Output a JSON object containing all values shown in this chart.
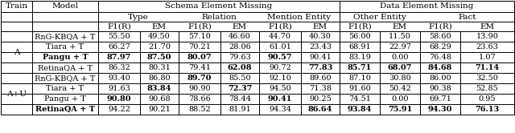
{
  "rows_A": [
    [
      "RnG-KBQA + T",
      "55.50",
      "49.50",
      "57.10",
      "46.60",
      "44.70",
      "40.30",
      "56.00",
      "11.50",
      "58.60",
      "13.90"
    ],
    [
      "Tiara + T",
      "66.27",
      "21.70",
      "70.21",
      "28.06",
      "61.01",
      "23.43",
      "68.91",
      "22.97",
      "68.29",
      "23.63"
    ],
    [
      "Pangu + T",
      "87.97",
      "87.50",
      "80.07",
      "79.63",
      "90.57",
      "90.41",
      "83.19",
      "0.00",
      "76.48",
      "1.07"
    ],
    [
      "RetinaQA + T",
      "86.32",
      "80.31",
      "79.41",
      "62.08",
      "90.72",
      "77.83",
      "85.71",
      "68.07",
      "84.68",
      "71.14"
    ]
  ],
  "rows_AU": [
    [
      "RnG-KBQA + T",
      "93.40",
      "86.80",
      "89.70",
      "85.50",
      "92.10",
      "89.60",
      "87.10",
      "30.80",
      "86.00",
      "32.50"
    ],
    [
      "Tiara + T",
      "91.63",
      "83.84",
      "90.90",
      "72.37",
      "94.50",
      "71.38",
      "91.60",
      "50.42",
      "90.38",
      "52.85"
    ],
    [
      "Pangu + T",
      "90.80",
      "90.68",
      "78.66",
      "78.44",
      "90.41",
      "90.25",
      "74.51",
      "0.00",
      "69.71",
      "0.95"
    ],
    [
      "RetinaQA + T",
      "94.22",
      "90.21",
      "88.52",
      "81.91",
      "94.34",
      "86.64",
      "93.84",
      "75.91",
      "94.30",
      "76.13"
    ]
  ],
  "bold_A": [
    [
      false,
      false,
      false,
      false,
      false,
      false,
      false,
      false,
      false,
      false,
      false
    ],
    [
      false,
      false,
      false,
      false,
      false,
      false,
      false,
      false,
      false,
      false,
      false
    ],
    [
      true,
      true,
      true,
      true,
      false,
      true,
      false,
      false,
      false,
      false,
      false
    ],
    [
      false,
      false,
      false,
      false,
      true,
      false,
      true,
      true,
      true,
      true,
      true
    ]
  ],
  "bold_AU": [
    [
      false,
      false,
      false,
      true,
      false,
      false,
      false,
      false,
      false,
      false,
      false
    ],
    [
      false,
      false,
      true,
      false,
      true,
      false,
      false,
      false,
      false,
      false,
      false
    ],
    [
      false,
      true,
      false,
      false,
      false,
      true,
      false,
      false,
      false,
      false,
      false
    ],
    [
      true,
      false,
      false,
      false,
      false,
      false,
      true,
      true,
      true,
      true,
      true
    ]
  ],
  "bg_color": "#ffffff",
  "line_color": "#000000",
  "font_size": 7.0,
  "header_font_size": 7.5
}
